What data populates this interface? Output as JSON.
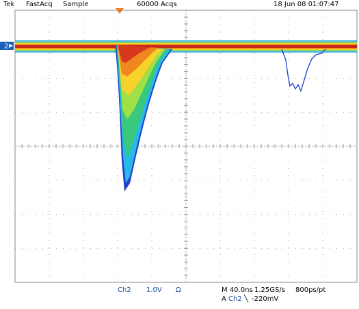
{
  "header": {
    "brand": "Tek",
    "mode": "FastAcq",
    "acquisition": "Sample",
    "acqs": "60000 Acqs",
    "timestamp": "18 Jun 08 01:07:47"
  },
  "channel_marker": "2",
  "footer": {
    "channel": "Ch2",
    "scale": "1.0V",
    "coupling": "Ω",
    "timebase": "M 40.0ns",
    "sample_rate": "1.25GS/s",
    "resolution": "800ps/pt",
    "trigger_label": "A",
    "trigger_source": "Ch2",
    "trigger_slope": "╲",
    "trigger_level": "-220mV"
  }
}
